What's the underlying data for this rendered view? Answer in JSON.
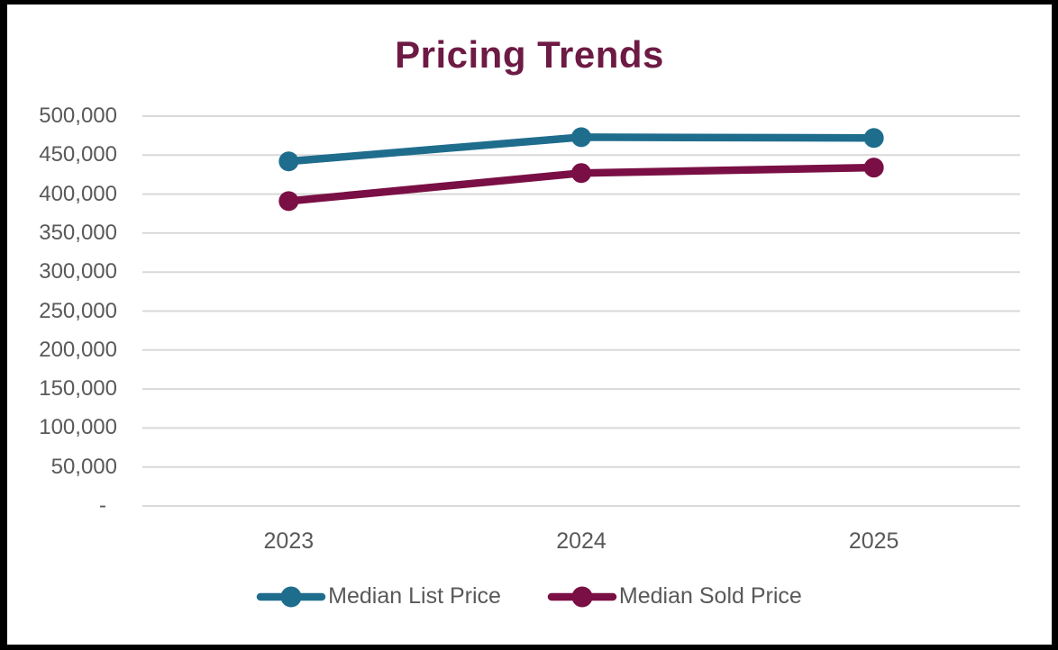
{
  "title": "Pricing Trends",
  "colors": {
    "title": "#6D1A44",
    "text": "#595959",
    "grid": "#D9D9D9",
    "background": "#FFFFFF",
    "frame": "#000000",
    "list_series": "#1F6D8D",
    "sold_series": "#7A0F45"
  },
  "chart_data": {
    "type": "line",
    "title": "Pricing Trends",
    "categories": [
      "2023",
      "2024",
      "2025"
    ],
    "series": [
      {
        "name": "Median List Price",
        "color": "#1F6D8D",
        "values": [
          442000,
          473000,
          472000
        ]
      },
      {
        "name": "Median Sold Price",
        "color": "#7A0F45",
        "values": [
          391000,
          427000,
          434000
        ]
      }
    ],
    "ylim": [
      0,
      500000
    ],
    "y_tick_step": 50000,
    "y_tick_labels": [
      "-",
      "50,000",
      "100,000",
      "150,000",
      "200,000",
      "250,000",
      "300,000",
      "350,000",
      "400,000",
      "450,000",
      "500,000"
    ],
    "grid": true,
    "legend_position": "bottom",
    "marker": "circle"
  }
}
